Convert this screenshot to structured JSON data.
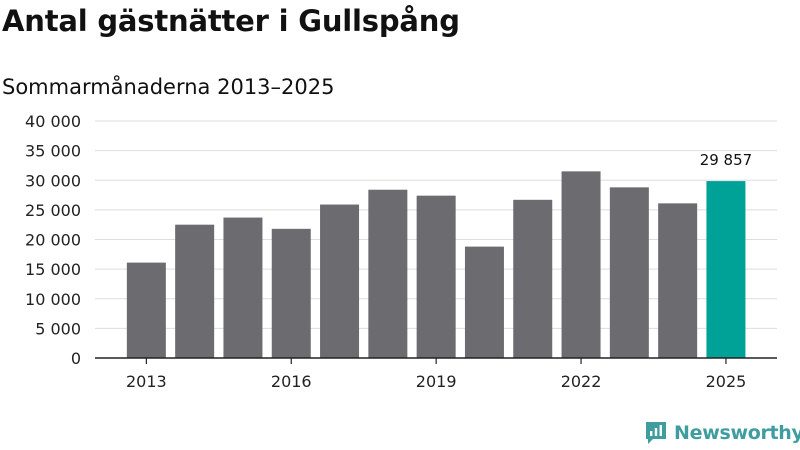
{
  "title": "Antal gästnätter i Gullspång",
  "subtitle": "Sommarmånaderna 2013–2025",
  "brand": {
    "name": "Newsworthy",
    "color": "#3f9da0"
  },
  "chart_data": {
    "type": "bar",
    "x": [
      2013,
      2014,
      2015,
      2016,
      2017,
      2018,
      2019,
      2020,
      2021,
      2022,
      2023,
      2024,
      2025
    ],
    "values": [
      16100,
      22500,
      23700,
      21800,
      25900,
      28400,
      27400,
      18800,
      26700,
      31500,
      28800,
      26100,
      29857
    ],
    "xticks": [
      "2013",
      "2016",
      "2019",
      "2022",
      "2025"
    ],
    "xtick_values": [
      2013,
      2016,
      2019,
      2022,
      2025
    ],
    "yticks": [
      "0",
      "5 000",
      "10 000",
      "15 000",
      "20 000",
      "25 000",
      "30 000",
      "35 000",
      "40 000"
    ],
    "ylim": [
      0,
      40000
    ],
    "highlight": {
      "x": 2025,
      "label": "29 857"
    },
    "colors": {
      "bar": "#6c6b70",
      "highlight": "#00a298",
      "grid": "#dddddd",
      "axis": "#222222"
    },
    "grid": true
  }
}
